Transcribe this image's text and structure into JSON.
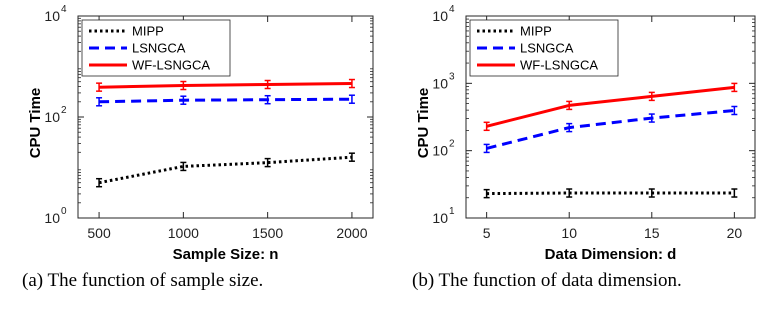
{
  "chart_data": [
    {
      "type": "line",
      "x": [
        500,
        1000,
        1500,
        2000
      ],
      "xticks": [
        "500",
        "1000",
        "1500",
        "2000"
      ],
      "xlim": [
        375,
        2125
      ],
      "xlabel": "Sample Size: n",
      "ylabel": "CPU Time",
      "yscale": "log",
      "ylim": [
        1,
        10000
      ],
      "yticks": [
        {
          "base": "10",
          "exp": "0",
          "value": 1
        },
        {
          "base": "10",
          "exp": "2",
          "value": 100
        },
        {
          "base": "10",
          "exp": "4",
          "value": 10000
        }
      ],
      "legend_position": "top-left",
      "grid": false,
      "series": [
        {
          "name": "MIPP",
          "values": [
            5,
            10.5,
            12.5,
            16
          ],
          "color": "#000000",
          "dash": "dotted"
        },
        {
          "name": "LSNGCA",
          "values": [
            200,
            215,
            220,
            225
          ],
          "color": "#0000ff",
          "dash": "dashed"
        },
        {
          "name": "WF-LSNGCA",
          "values": [
            390,
            420,
            440,
            460
          ],
          "color": "#ff0000",
          "dash": "solid"
        }
      ],
      "caption": "(a) The function of sample size."
    },
    {
      "type": "line",
      "x": [
        5,
        10,
        15,
        20
      ],
      "xticks": [
        "5",
        "10",
        "15",
        "20"
      ],
      "xlim": [
        3.75,
        21.25
      ],
      "xlabel": "Data Dimension: d",
      "ylabel": "CPU Time",
      "yscale": "log",
      "ylim": [
        10,
        10000
      ],
      "yticks": [
        {
          "base": "10",
          "exp": "1",
          "value": 10
        },
        {
          "base": "10",
          "exp": "2",
          "value": 100
        },
        {
          "base": "10",
          "exp": "3",
          "value": 1000
        },
        {
          "base": "10",
          "exp": "4",
          "value": 10000
        }
      ],
      "legend_position": "top-left",
      "grid": false,
      "series": [
        {
          "name": "MIPP",
          "values": [
            23,
            23.5,
            23.5,
            23.5
          ],
          "color": "#000000",
          "dash": "dotted"
        },
        {
          "name": "LSNGCA",
          "values": [
            108,
            220,
            305,
            395
          ],
          "color": "#0000ff",
          "dash": "dashed"
        },
        {
          "name": "WF-LSNGCA",
          "values": [
            230,
            470,
            640,
            870
          ],
          "color": "#ff0000",
          "dash": "solid"
        }
      ],
      "caption": "(b) The function of data dimension."
    }
  ]
}
